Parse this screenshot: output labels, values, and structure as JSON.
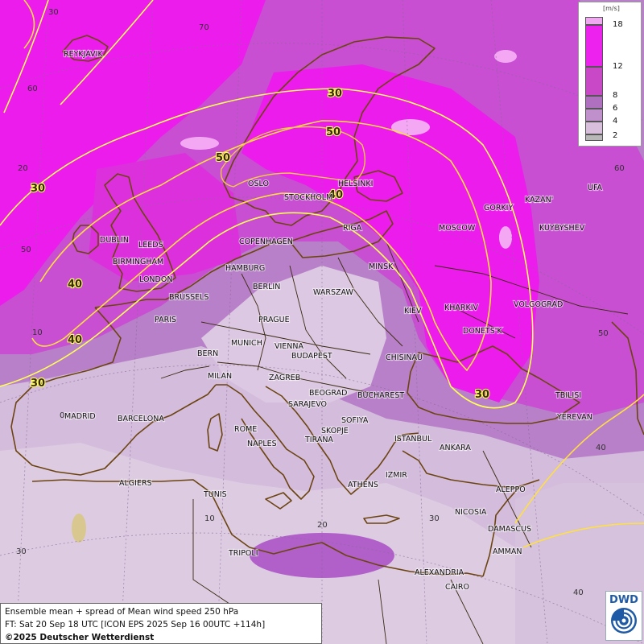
{
  "legend": {
    "unit": "[m/s]",
    "ticks": [
      "18",
      "12",
      "8",
      "6",
      "4",
      "2"
    ],
    "colors": [
      "#f0a8f0",
      "#ee22ee",
      "#c848c8",
      "#b070c0",
      "#c090cc",
      "#d8c0dc",
      "#b8b8b8"
    ]
  },
  "caption": {
    "line1": "Ensemble mean + spread of Mean wind speed 250 hPa",
    "line2": "FT: Sat 20 Sep 18 UTC [ICON EPS 2025 Sep 16 00UTC +114h]",
    "line3": "©2025 Deutscher Wetterdienst"
  },
  "logo": {
    "text": "DWD"
  },
  "cities": {
    "reykjavik": "REYKJAVIK",
    "oslo": "OSLO",
    "stockholm": "STOCKHOLM",
    "helsinki": "HELSINKI",
    "dublin": "DUBLIN",
    "leeds": "LEEDS",
    "birmingham": "BIRMINGHAM",
    "london": "LONDON",
    "copenhagen": "COPENHAGEN",
    "hamburg": "HAMBURG",
    "berlin": "BERLIN",
    "riga": "RIGA",
    "minsk": "MINSK",
    "moscow": "MOSCOW",
    "gorkiy": "GORKIY",
    "kazan": "KAZAN'",
    "ufa": "UFA",
    "kuybyshev": "KUYBYSHEV",
    "brussels": "BRUSSELS",
    "paris": "PARIS",
    "warszaw": "WARSZAW",
    "kiev": "KIEV",
    "kharkiv": "KHARKIV",
    "volgograd": "VOLGOGRAD",
    "prague": "PRAGUE",
    "munich": "MUNICH",
    "vienna": "VIENNA",
    "donetsk": "DONETS'K",
    "bern": "BERN",
    "budapest": "BUDAPEST",
    "chisinau": "CHISINAU",
    "milan": "MILAN",
    "zagreb": "ZAGREB",
    "beograd": "BEOGRAD",
    "bucharest": "BUCHAREST",
    "sarajevo": "SARAJEVO",
    "tbilisi": "TBILISI",
    "madrid": "MADRID",
    "barcelona": "BARCELONA",
    "rome": "ROME",
    "sofiya": "SOFIYA",
    "yerevan": "YEREVAN",
    "skopje": "SKOPJE",
    "naples": "NAPLES",
    "tirana": "TIRANA",
    "istanbul": "ISTANBUL",
    "ankara": "ANKARA",
    "algiers": "ALGIERS",
    "izmir": "IZMIR",
    "athens": "ATHENS",
    "aleppo": "ALEPPO",
    "tunis": "TUNIS",
    "nicosia": "NICOSIA",
    "damascus": "DAMASCUS",
    "tripoli": "TRIPOLI",
    "amman": "AMMAN",
    "alexandria": "ALEXANDRIA",
    "cairo": "CAIRO"
  },
  "grid_labels": {
    "lon_minus30": "30",
    "lat70": "70",
    "lat60_w": "60",
    "lon_minus20": "20",
    "lat50_w": "50",
    "lon_minus10": "10",
    "lon0": "0",
    "lon10": "10",
    "lat30_w": "30",
    "lon20": "20",
    "lon30": "30",
    "lon40": "40",
    "lat60_e": "60",
    "lat50_e": "50",
    "lon70": "70",
    "lat40_e": "40"
  },
  "isotachs": {
    "l30_scand": "30",
    "l50_scand": "50",
    "l50_norway": "50",
    "l40_baltic": "40",
    "l30_atl": "30",
    "l40_atl": "40",
    "l40_biscay": "40",
    "l30_iberia": "30",
    "l30_caucasus": "30"
  }
}
